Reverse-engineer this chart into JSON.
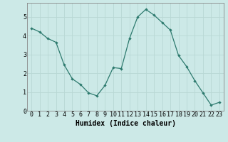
{
  "x": [
    0,
    1,
    2,
    3,
    4,
    5,
    6,
    7,
    8,
    9,
    10,
    11,
    12,
    13,
    14,
    15,
    16,
    17,
    18,
    19,
    20,
    21,
    22,
    23
  ],
  "y": [
    4.4,
    4.2,
    3.85,
    3.65,
    2.45,
    1.7,
    1.4,
    0.95,
    0.8,
    1.35,
    2.3,
    2.25,
    3.85,
    5.0,
    5.4,
    5.1,
    4.7,
    4.3,
    2.95,
    2.35,
    1.6,
    0.95,
    0.3,
    0.45
  ],
  "xlabel": "Humidex (Indice chaleur)",
  "ylabel": "",
  "xlim": [
    -0.5,
    23.5
  ],
  "ylim": [
    0,
    5.75
  ],
  "bg_color": "#cce9e7",
  "line_color": "#2d7a6e",
  "marker_color": "#2d7a6e",
  "grid_color_major": "#b8d8d5",
  "grid_color_minor": "#d8eeec",
  "yticks": [
    0,
    1,
    2,
    3,
    4,
    5
  ],
  "xticks": [
    0,
    1,
    2,
    3,
    4,
    5,
    6,
    7,
    8,
    9,
    10,
    11,
    12,
    13,
    14,
    15,
    16,
    17,
    18,
    19,
    20,
    21,
    22,
    23
  ],
  "xlabel_fontsize": 7,
  "tick_fontsize": 6,
  "spine_color": "#888888"
}
